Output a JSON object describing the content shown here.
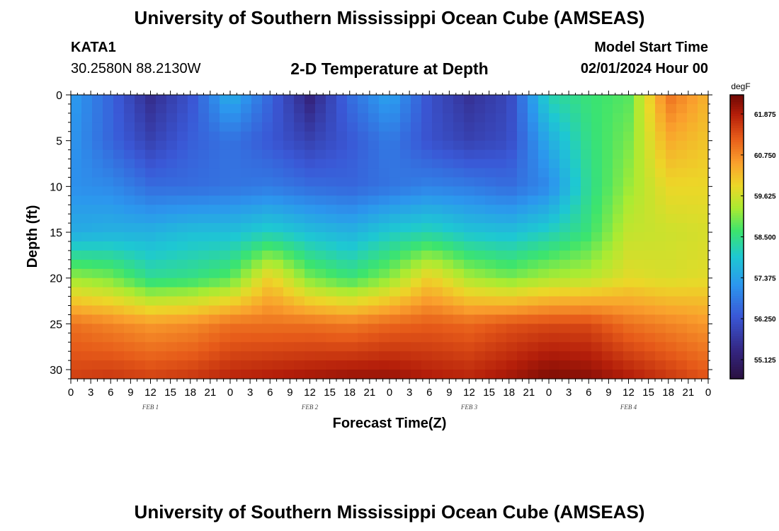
{
  "header": {
    "title": "University of Southern Mississippi Ocean Cube (AMSEAS)",
    "station_id": "KATA1",
    "coords": "30.2580N  88.2130W",
    "plot_title": "2-D Temperature at Depth",
    "model_start_label": "Model Start Time",
    "model_start_value": "02/01/2024 Hour 00"
  },
  "footer": {
    "title": "University of Southern Mississippi Ocean Cube (AMSEAS)"
  },
  "chart_data": {
    "type": "heatmap",
    "title": "2-D Temperature at Depth",
    "xlabel": "Forecast Time(Z)",
    "ylabel": "Depth (ft)",
    "x_ticks": [
      "0",
      "3",
      "6",
      "9",
      "12",
      "15",
      "18",
      "21",
      "0",
      "3",
      "6",
      "9",
      "12",
      "15",
      "18",
      "21",
      "0",
      "3",
      "6",
      "9",
      "12",
      "15",
      "18",
      "21",
      "0",
      "3",
      "6",
      "9",
      "12",
      "15",
      "18",
      "21",
      "0"
    ],
    "date_labels": [
      {
        "text": "FEB 1",
        "hour": 12
      },
      {
        "text": "FEB 2",
        "hour": 36
      },
      {
        "text": "FEB 3",
        "hour": 60
      },
      {
        "text": "FEB 4",
        "hour": 84
      }
    ],
    "x_range_hours": [
      0,
      96
    ],
    "y_ticks": [
      0,
      5,
      10,
      15,
      20,
      25,
      30
    ],
    "y_range": [
      0,
      31
    ],
    "colorbar": {
      "unit": "degF",
      "min": 54.6,
      "max": 62.4,
      "tick_values": [
        55.125,
        56.25,
        57.375,
        58.5,
        59.625,
        60.75,
        61.875
      ],
      "tick_labels": [
        "55.125",
        "56.250",
        "57.375",
        "58.500",
        "59.625",
        "60.750",
        "61.875"
      ]
    },
    "series": [
      {
        "name": "temperature (degF)",
        "depths_ft": [
          0,
          5,
          10,
          15,
          20,
          25,
          31
        ],
        "hours": [
          0,
          6,
          12,
          18,
          24,
          30,
          36,
          42,
          48,
          54,
          60,
          66,
          72,
          78,
          84,
          90,
          96
        ],
        "values": [
          [
            57.3,
            56.5,
            55.5,
            56.2,
            57.6,
            56.5,
            55.3,
            56.6,
            57.4,
            56.2,
            55.6,
            56.0,
            58.2,
            58.6,
            58.8,
            61.0,
            60.3
          ],
          [
            57.2,
            56.5,
            55.9,
            56.4,
            56.7,
            56.3,
            55.9,
            56.3,
            56.8,
            56.2,
            55.9,
            56.1,
            57.5,
            58.5,
            59.0,
            60.4,
            60.1
          ],
          [
            57.1,
            57.0,
            56.6,
            56.6,
            56.7,
            56.8,
            56.6,
            56.5,
            56.7,
            56.9,
            56.8,
            56.6,
            57.0,
            58.4,
            59.2,
            59.9,
            59.9
          ],
          [
            57.5,
            57.6,
            57.6,
            57.8,
            57.8,
            58.1,
            57.8,
            57.6,
            58.0,
            58.2,
            57.9,
            57.8,
            58.1,
            58.6,
            59.5,
            59.6,
            59.7
          ],
          [
            59.2,
            59.0,
            58.4,
            58.5,
            58.8,
            60.0,
            59.0,
            58.6,
            59.1,
            60.0,
            59.3,
            59.0,
            59.3,
            59.4,
            59.8,
            59.7,
            59.8
          ],
          [
            61.0,
            60.8,
            60.6,
            60.7,
            61.0,
            61.0,
            61.0,
            60.9,
            61.1,
            61.2,
            61.1,
            61.3,
            61.4,
            61.4,
            61.0,
            60.8,
            60.6
          ],
          [
            61.5,
            61.6,
            61.5,
            61.6,
            61.8,
            61.9,
            62.0,
            62.1,
            62.1,
            61.9,
            61.8,
            62.0,
            62.3,
            62.2,
            61.9,
            61.6,
            61.3
          ]
        ]
      }
    ]
  }
}
